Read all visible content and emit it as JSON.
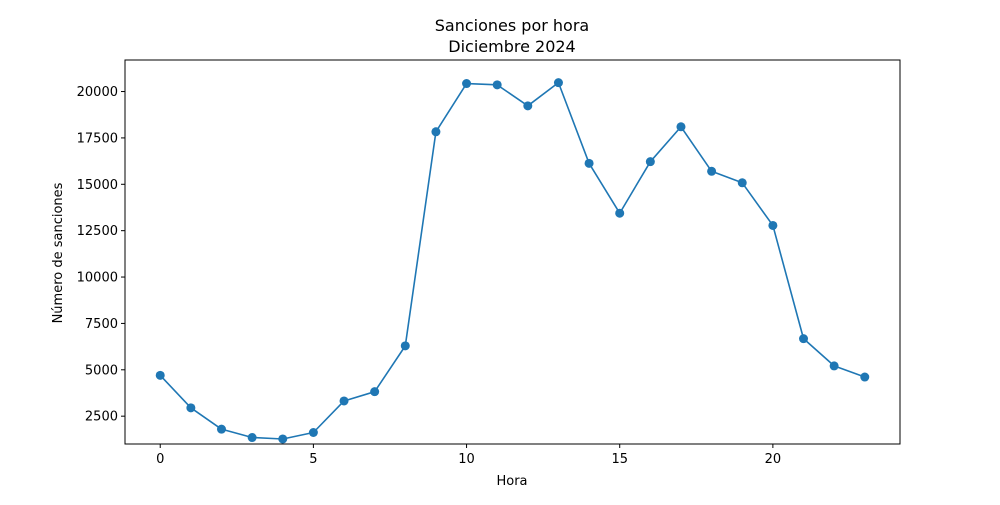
{
  "chart_data": {
    "type": "line",
    "title": "Sanciones por hora",
    "subtitle": "Diciembre 2024",
    "xlabel": "Hora",
    "ylabel": "Número de sanciones",
    "xlim": [
      -1.15,
      24.15
    ],
    "ylim": [
      1000,
      21700
    ],
    "x_ticks": [
      0,
      5,
      10,
      15,
      20
    ],
    "y_ticks": [
      2500,
      5000,
      7500,
      10000,
      12500,
      15000,
      17500,
      20000
    ],
    "grid": false,
    "series": [
      {
        "color": "#1f77b4",
        "marker": "circle",
        "x": [
          0,
          1,
          2,
          3,
          4,
          5,
          6,
          7,
          8,
          9,
          10,
          11,
          12,
          13,
          14,
          15,
          16,
          17,
          18,
          19,
          20,
          21,
          22,
          23
        ],
        "values": [
          4700,
          2950,
          1800,
          1350,
          1270,
          1620,
          3320,
          3820,
          6290,
          17830,
          20430,
          20360,
          19230,
          20480,
          16130,
          13440,
          16220,
          18100,
          15700,
          15080,
          12780,
          6680,
          5210,
          4610
        ]
      }
    ]
  }
}
